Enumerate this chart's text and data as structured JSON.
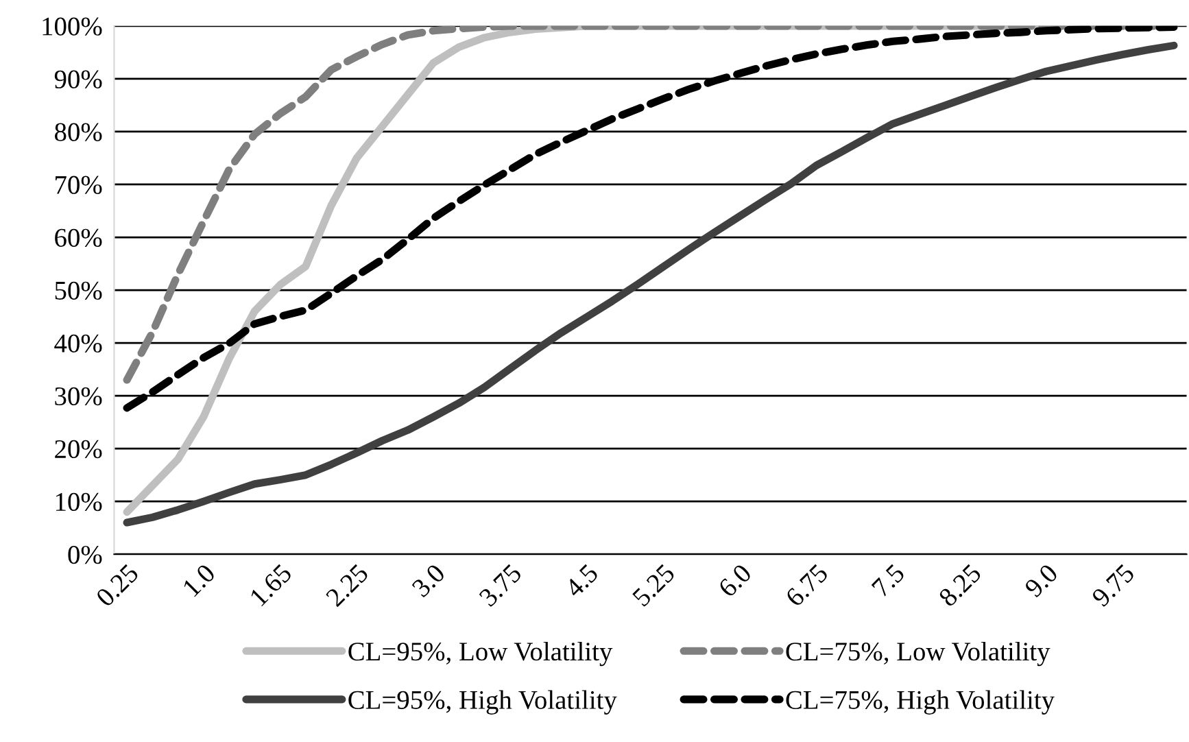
{
  "chart_data": {
    "type": "line",
    "categories": [
      "0.25",
      null,
      null,
      "1.0",
      null,
      null,
      "1.65",
      null,
      null,
      "2.25",
      null,
      null,
      "3.0",
      null,
      null,
      "3.75",
      null,
      null,
      "4.5",
      null,
      null,
      "5.25",
      null,
      null,
      "6.0",
      null,
      null,
      "6.75",
      null,
      null,
      "7.5",
      null,
      null,
      "8.25",
      null,
      null,
      "9.0",
      null,
      null,
      "9.75",
      null,
      null
    ],
    "series": [
      {
        "name": "CL=95%, Low Volatility",
        "color": "#bfbfbf",
        "line_style": "solid",
        "values": [
          8,
          13,
          18,
          26,
          37,
          46,
          51,
          54.5,
          66,
          75,
          81,
          87,
          93,
          96,
          97.8,
          98.8,
          99.4,
          99.7,
          100,
          100,
          100,
          100,
          100,
          100,
          100,
          100,
          100,
          100,
          100,
          100,
          100,
          100,
          100,
          100,
          100,
          100,
          100,
          100,
          100,
          100,
          100,
          100
        ]
      },
      {
        "name": "CL=75%, Low Volatility",
        "color": "#7f7f7f",
        "line_style": "dashed",
        "values": [
          33,
          42,
          53,
          63,
          72.8,
          79.5,
          83.4,
          86.6,
          91.7,
          94.2,
          96.5,
          98.3,
          99.1,
          99.5,
          99.8,
          100,
          100,
          100,
          100,
          100,
          100,
          100,
          100,
          100,
          100,
          100,
          100,
          100,
          100,
          100,
          100,
          100,
          100,
          100,
          100,
          100,
          100,
          100,
          100,
          100,
          100,
          100
        ]
      },
      {
        "name": "CL=95%, High Volatility",
        "color": "#404040",
        "line_style": "solid",
        "values": [
          6,
          7,
          8.4,
          10,
          11.7,
          13.3,
          14.1,
          15,
          17,
          19.2,
          21.5,
          23.5,
          26,
          28.6,
          31.6,
          35.1,
          38.6,
          41.9,
          44.9,
          47.9,
          51.1,
          54.4,
          57.7,
          60.9,
          64,
          67.1,
          70.1,
          73.6,
          76.2,
          78.9,
          81.5,
          83.2,
          84.9,
          86.6,
          88.3,
          89.9,
          91.4,
          92.5,
          93.6,
          94.6,
          95.5,
          96.3
        ]
      },
      {
        "name": "CL=75%, High Volatility",
        "color": "#000000",
        "line_style": "dashed",
        "values": [
          27.7,
          30.7,
          34,
          37.2,
          39.9,
          43.6,
          45,
          46.2,
          49.4,
          52.7,
          55.8,
          59.6,
          63.6,
          66.8,
          69.9,
          72.8,
          75.7,
          78,
          80.2,
          82.4,
          84.3,
          86.2,
          88,
          89.6,
          91,
          92.4,
          93.6,
          94.7,
          95.6,
          96.4,
          97.1,
          97.5,
          98,
          98.3,
          98.6,
          98.8,
          99.1,
          99.3,
          99.5,
          99.6,
          99.7,
          99.8
        ]
      }
    ],
    "ylim": [
      0,
      100
    ],
    "yticks": [
      {
        "value": 0,
        "label": "0%"
      },
      {
        "value": 10,
        "label": "10%"
      },
      {
        "value": 20,
        "label": "20%"
      },
      {
        "value": 30,
        "label": "30%"
      },
      {
        "value": 40,
        "label": "40%"
      },
      {
        "value": 50,
        "label": "50%"
      },
      {
        "value": 60,
        "label": "60%"
      },
      {
        "value": 70,
        "label": "70%"
      },
      {
        "value": 80,
        "label": "80%"
      },
      {
        "value": 90,
        "label": "90%"
      },
      {
        "value": 100,
        "label": "100%"
      }
    ],
    "grid": "y",
    "legend": "bottom",
    "marker": "none"
  }
}
